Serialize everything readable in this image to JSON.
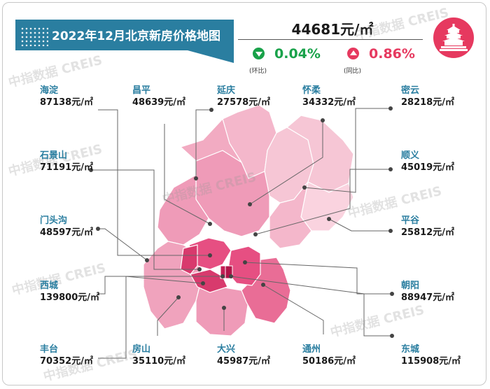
{
  "title": "2022年12月北京新房价格地图",
  "average_price": "44681元/㎡",
  "month_on_month": {
    "value": "0.04%",
    "label": "(环比)",
    "direction": "down",
    "color": "#19a24a"
  },
  "year_on_year": {
    "value": "0.86%",
    "label": "(同比)",
    "direction": "up",
    "color": "#e6395f"
  },
  "watermark": "中指数据 CREIS",
  "logo_icon": "temple-of-heaven-icon",
  "unit_suffix": "元/㎡",
  "districts": [
    {
      "name": "海淀",
      "price": "87138"
    },
    {
      "name": "昌平",
      "price": "48639"
    },
    {
      "name": "延庆",
      "price": "27578"
    },
    {
      "name": "怀柔",
      "price": "34332"
    },
    {
      "name": "密云",
      "price": "28218"
    },
    {
      "name": "石景山",
      "price": "71191"
    },
    {
      "name": "顺义",
      "price": "45019"
    },
    {
      "name": "门头沟",
      "price": "48597"
    },
    {
      "name": "平谷",
      "price": "25812"
    },
    {
      "name": "西城",
      "price": "139800"
    },
    {
      "name": "朝阳",
      "price": "88947"
    },
    {
      "name": "丰台",
      "price": "70352"
    },
    {
      "name": "房山",
      "price": "35110"
    },
    {
      "name": "大兴",
      "price": "45987"
    },
    {
      "name": "通州",
      "price": "50186"
    },
    {
      "name": "东城",
      "price": "115908"
    }
  ],
  "colors": {
    "title_banner": "#2a7ea0",
    "district_name": "#2a7ea0",
    "map_outer_light": "#f6c6d5",
    "map_outer_mid": "#ef9bb8",
    "map_inner": "#e64f82",
    "map_core": "#c41e55"
  }
}
